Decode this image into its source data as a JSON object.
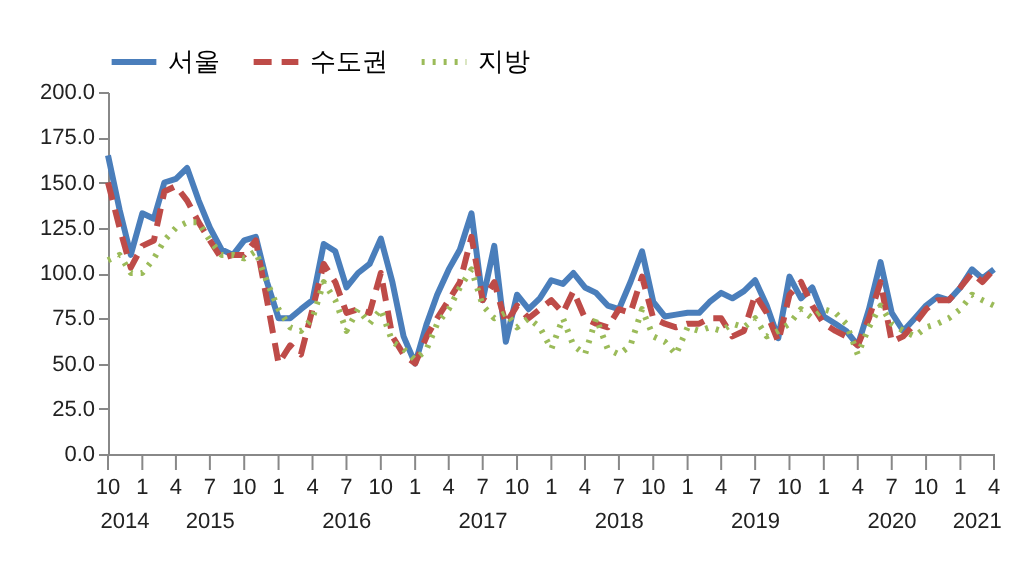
{
  "chart_data": {
    "type": "line",
    "x": [
      "2014-10",
      "2014-11",
      "2014-12",
      "2015-01",
      "2015-02",
      "2015-03",
      "2015-04",
      "2015-05",
      "2015-06",
      "2015-07",
      "2015-08",
      "2015-09",
      "2015-10",
      "2015-11",
      "2015-12",
      "2016-01",
      "2016-02",
      "2016-03",
      "2016-04",
      "2016-05",
      "2016-06",
      "2016-07",
      "2016-08",
      "2016-09",
      "2016-10",
      "2016-11",
      "2016-12",
      "2017-01",
      "2017-02",
      "2017-03",
      "2017-04",
      "2017-05",
      "2017-06",
      "2017-07",
      "2017-08",
      "2017-09",
      "2017-10",
      "2017-11",
      "2017-12",
      "2018-01",
      "2018-02",
      "2018-03",
      "2018-04",
      "2018-05",
      "2018-06",
      "2018-07",
      "2018-08",
      "2018-09",
      "2018-10",
      "2018-11",
      "2018-12",
      "2019-01",
      "2019-02",
      "2019-03",
      "2019-04",
      "2019-05",
      "2019-06",
      "2019-07",
      "2019-08",
      "2019-09",
      "2019-10",
      "2019-11",
      "2019-12",
      "2020-01",
      "2020-02",
      "2020-03",
      "2020-04",
      "2020-05",
      "2020-06",
      "2020-07",
      "2020-08",
      "2020-09",
      "2020-10",
      "2020-11",
      "2020-12",
      "2021-01",
      "2021-02",
      "2021-03",
      "2021-04"
    ],
    "series": [
      {
        "name": "서울",
        "color": "#4a7ebb",
        "line_style": "solid",
        "values": [
          165,
          135,
          110,
          133,
          130,
          150,
          152,
          158,
          140,
          125,
          113,
          110,
          118,
          120,
          95,
          75,
          75,
          80,
          85,
          116,
          112,
          92,
          100,
          105,
          119,
          95,
          65,
          50,
          72,
          88,
          102,
          113,
          133,
          85,
          115,
          62,
          88,
          80,
          86,
          96,
          94,
          100,
          92,
          89,
          82,
          80,
          95,
          112,
          84,
          76,
          77,
          78,
          78,
          84,
          89,
          86,
          90,
          96,
          82,
          64,
          98,
          86,
          92,
          76,
          72,
          68,
          60,
          80,
          106,
          78,
          68,
          75,
          82,
          87,
          85,
          92,
          102,
          97,
          102
        ]
      },
      {
        "name": "수도권",
        "color": "#be4b48",
        "line_style": "dashed",
        "values": [
          150,
          125,
          103,
          115,
          118,
          145,
          148,
          140,
          128,
          118,
          108,
          110,
          110,
          118,
          85,
          50,
          60,
          55,
          80,
          105,
          95,
          78,
          80,
          78,
          100,
          65,
          55,
          50,
          65,
          75,
          85,
          95,
          120,
          85,
          95,
          72,
          82,
          75,
          80,
          85,
          78,
          90,
          75,
          72,
          70,
          80,
          78,
          98,
          75,
          72,
          70,
          72,
          72,
          75,
          75,
          65,
          68,
          88,
          78,
          62,
          88,
          95,
          82,
          72,
          68,
          65,
          60,
          75,
          95,
          62,
          65,
          72,
          80,
          85,
          85,
          92,
          100,
          95,
          102
        ]
      },
      {
        "name": "지방",
        "color": "#9bbb59",
        "line_style": "dotted",
        "values": [
          107,
          110,
          100,
          100,
          108,
          118,
          125,
          128,
          128,
          118,
          110,
          110,
          108,
          112,
          95,
          80,
          70,
          68,
          75,
          95,
          85,
          68,
          80,
          72,
          80,
          62,
          58,
          52,
          58,
          72,
          80,
          92,
          102,
          82,
          75,
          78,
          70,
          75,
          70,
          58,
          75,
          60,
          55,
          75,
          58,
          55,
          60,
          80,
          65,
          62,
          55,
          70,
          68,
          70,
          68,
          72,
          70,
          75,
          65,
          68,
          72,
          80,
          75,
          80,
          78,
          72,
          55,
          70,
          82,
          72,
          68,
          65,
          70,
          72,
          75,
          80,
          88,
          85,
          82
        ]
      }
    ],
    "xlim": [
      "2014-10",
      "2021-04"
    ],
    "xticks": [
      {
        "value": "2014-10",
        "label": "10"
      },
      {
        "value": "2015-01",
        "label": "1"
      },
      {
        "value": "2015-04",
        "label": "4"
      },
      {
        "value": "2015-07",
        "label": "7"
      },
      {
        "value": "2015-10",
        "label": "10"
      },
      {
        "value": "2016-01",
        "label": "1"
      },
      {
        "value": "2016-04",
        "label": "4"
      },
      {
        "value": "2016-07",
        "label": "7"
      },
      {
        "value": "2016-10",
        "label": "10"
      },
      {
        "value": "2017-01",
        "label": "1"
      },
      {
        "value": "2017-04",
        "label": "4"
      },
      {
        "value": "2017-07",
        "label": "7"
      },
      {
        "value": "2017-10",
        "label": "10"
      },
      {
        "value": "2018-01",
        "label": "1"
      },
      {
        "value": "2018-04",
        "label": "4"
      },
      {
        "value": "2018-07",
        "label": "7"
      },
      {
        "value": "2018-10",
        "label": "10"
      },
      {
        "value": "2019-01",
        "label": "1"
      },
      {
        "value": "2019-04",
        "label": "4"
      },
      {
        "value": "2019-07",
        "label": "7"
      },
      {
        "value": "2019-10",
        "label": "10"
      },
      {
        "value": "2020-01",
        "label": "1"
      },
      {
        "value": "2020-04",
        "label": "4"
      },
      {
        "value": "2020-07",
        "label": "7"
      },
      {
        "value": "2020-10",
        "label": "10"
      },
      {
        "value": "2021-01",
        "label": "1"
      },
      {
        "value": "2021-04",
        "label": "4"
      }
    ],
    "ylim": [
      0,
      200
    ],
    "yticks": [
      {
        "value": 0,
        "label": "0.0"
      },
      {
        "value": 25,
        "label": "25.0"
      },
      {
        "value": 50,
        "label": "50.0"
      },
      {
        "value": 75,
        "label": "75.0"
      },
      {
        "value": 100,
        "label": "100.0"
      },
      {
        "value": 125,
        "label": "125.0"
      },
      {
        "value": 150,
        "label": "150.0"
      },
      {
        "value": 175,
        "label": "175.0"
      },
      {
        "value": 200,
        "label": "200.0"
      }
    ],
    "annotations": [
      "2014",
      "2015",
      "2016",
      "2017",
      "2018",
      "2019",
      "2020",
      "2021"
    ],
    "legend": "top",
    "grid": false,
    "marker": "none"
  }
}
